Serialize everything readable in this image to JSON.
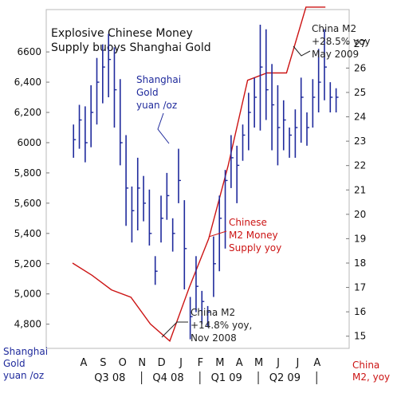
{
  "chart_data": {
    "type": "line",
    "title": "Explosive Chinese Money",
    "subtitle": "Supply buoys Shanghai Gold",
    "months": [
      "A",
      "S",
      "O",
      "N",
      "D",
      "J",
      "F",
      "M",
      "A",
      "M",
      "J",
      "J",
      "A"
    ],
    "quarters": [
      "Q3 08",
      "Q4 08",
      "Q1 09",
      "Q2 09"
    ],
    "left_axis": {
      "label_lines": [
        "Shanghai",
        "Gold",
        "yuan /oz"
      ],
      "ticks": [
        "6600",
        "6,400",
        "6,200",
        "6000",
        "5,800",
        "5,600",
        "5,400",
        "5,200",
        "5,000",
        "4,800"
      ],
      "tick_values": [
        6600,
        6400,
        6200,
        6000,
        5800,
        5600,
        5400,
        5200,
        5000,
        4800
      ],
      "range": [
        4640,
        6880
      ]
    },
    "right_axis": {
      "label_lines": [
        "China",
        "M2, yoy"
      ],
      "ticks": [
        "27",
        "26",
        "25",
        "24",
        "23",
        "22",
        "21",
        "20",
        "19",
        "18",
        "17",
        "16",
        "15"
      ],
      "tick_values": [
        27,
        26,
        25,
        24,
        23,
        22,
        21,
        20,
        19,
        18,
        17,
        16,
        15
      ],
      "range": [
        14.5,
        28.4
      ]
    },
    "series": [
      {
        "name": "Shanghai Gold",
        "kind": "hlc-bars",
        "color": "#1f2a9c",
        "t": [
          0.05,
          0.35,
          0.65,
          0.95,
          1.25,
          1.55,
          1.85,
          2.15,
          2.45,
          2.75,
          3.05,
          3.35,
          3.65,
          3.95,
          4.25,
          4.55,
          4.85,
          5.15,
          5.45,
          5.75,
          6.05,
          6.35,
          6.65,
          6.95,
          7.25,
          7.55,
          7.85,
          8.15,
          8.45,
          8.75,
          9.05,
          9.35,
          9.65,
          9.95,
          10.25,
          10.55,
          10.85,
          11.15,
          11.45,
          11.75,
          12.05,
          12.35,
          12.65,
          12.95,
          13.25,
          13.55
        ],
        "high": [
          6120,
          6250,
          6240,
          6380,
          6560,
          6650,
          6720,
          6630,
          6420,
          6050,
          5710,
          5900,
          5780,
          5690,
          5250,
          5650,
          5800,
          5500,
          5960,
          5620,
          4980,
          5250,
          5020,
          4920,
          5380,
          5650,
          5820,
          6050,
          5980,
          6120,
          6330,
          6430,
          6780,
          6750,
          6520,
          6380,
          6280,
          6100,
          6220,
          6430,
          6200,
          6420,
          6620,
          6750,
          6400,
          6360
        ],
        "low": [
          5900,
          5960,
          5870,
          5970,
          6120,
          6260,
          6300,
          6100,
          5850,
          5450,
          5340,
          5420,
          5480,
          5320,
          5060,
          5340,
          5490,
          5280,
          5600,
          5030,
          4700,
          4880,
          4800,
          4780,
          4980,
          5150,
          5300,
          5700,
          5600,
          5880,
          5950,
          6100,
          6080,
          6150,
          5950,
          5850,
          5950,
          5900,
          5900,
          6000,
          5980,
          6100,
          6200,
          6280,
          6200,
          6200
        ],
        "close": [
          6020,
          6150,
          6000,
          6200,
          6400,
          6500,
          6550,
          6350,
          6000,
          5700,
          5550,
          5700,
          5600,
          5400,
          5150,
          5500,
          5650,
          5400,
          5750,
          5300,
          4850,
          5050,
          4950,
          4880,
          5200,
          5500,
          5750,
          5900,
          5850,
          6050,
          6200,
          6300,
          6500,
          6350,
          6250,
          6100,
          6150,
          6050,
          6100,
          6300,
          6100,
          6300,
          6400,
          6500,
          6300,
          6300
        ]
      },
      {
        "name": "China M2",
        "kind": "line",
        "color": "#cc1414",
        "t": [
          0,
          1,
          2,
          3,
          4,
          5,
          6,
          7,
          8,
          9,
          10,
          11,
          12,
          13
        ],
        "values": [
          18.0,
          17.5,
          16.9,
          16.6,
          15.5,
          14.8,
          17.0,
          19.0,
          22.0,
          25.5,
          25.8,
          25.8,
          28.5,
          28.5
        ]
      }
    ],
    "annotations": [
      {
        "lines": [
          "Shanghai",
          "Gold",
          "yuan /oz"
        ],
        "color": "#1f2a9c"
      },
      {
        "lines": [
          "Chinese",
          "M2 Money",
          "Supply yoy"
        ],
        "color": "#cc1414"
      },
      {
        "lines": [
          "China M2",
          "+14.8% yoy,",
          "Nov 2008"
        ],
        "color": "#222222"
      },
      {
        "lines": [
          "China M2",
          "+28.5% yoy",
          "May 2009"
        ],
        "color": "#222222"
      }
    ]
  }
}
